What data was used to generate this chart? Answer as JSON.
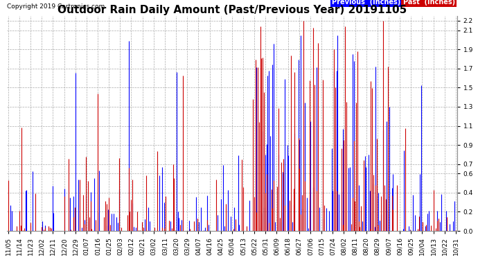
{
  "title": "Outdoor Rain Daily Amount (Past/Previous Year) 20191105",
  "copyright": "Copyright 2019 Cartronics.com",
  "legend_labels": [
    "Previous  (Inches)",
    "Past  (Inches)"
  ],
  "legend_colors": [
    "#0000ff",
    "#cc0000"
  ],
  "yticks": [
    0.0,
    0.2,
    0.4,
    0.6,
    0.7,
    0.9,
    1.1,
    1.3,
    1.5,
    1.7,
    1.9,
    2.1,
    2.2
  ],
  "ylim": [
    0.0,
    2.25
  ],
  "bg_color": "#ffffff",
  "grid_color": "#aaaaaa",
  "title_fontsize": 11,
  "tick_fontsize": 6.5,
  "copyright_fontsize": 6.5,
  "xtick_labels": [
    "11/05",
    "11/14",
    "11/23",
    "12/02",
    "12/11",
    "12/20",
    "12/29",
    "01/07",
    "01/16",
    "01/25",
    "02/03",
    "02/12",
    "02/21",
    "03/02",
    "03/11",
    "03/20",
    "03/29",
    "04/07",
    "04/16",
    "04/25",
    "05/04",
    "05/13",
    "05/22",
    "05/31",
    "06/09",
    "06/18",
    "06/27",
    "07/06",
    "07/15",
    "07/24",
    "08/02",
    "08/11",
    "08/20",
    "08/29",
    "09/07",
    "09/16",
    "09/25",
    "10/04",
    "10/13",
    "10/22",
    "10/31"
  ],
  "n_days": 365,
  "prev_seed": 7,
  "past_seed": 13,
  "prev_color": "#0000ff",
  "past_color": "#cc0000",
  "dark_color": "#333333"
}
